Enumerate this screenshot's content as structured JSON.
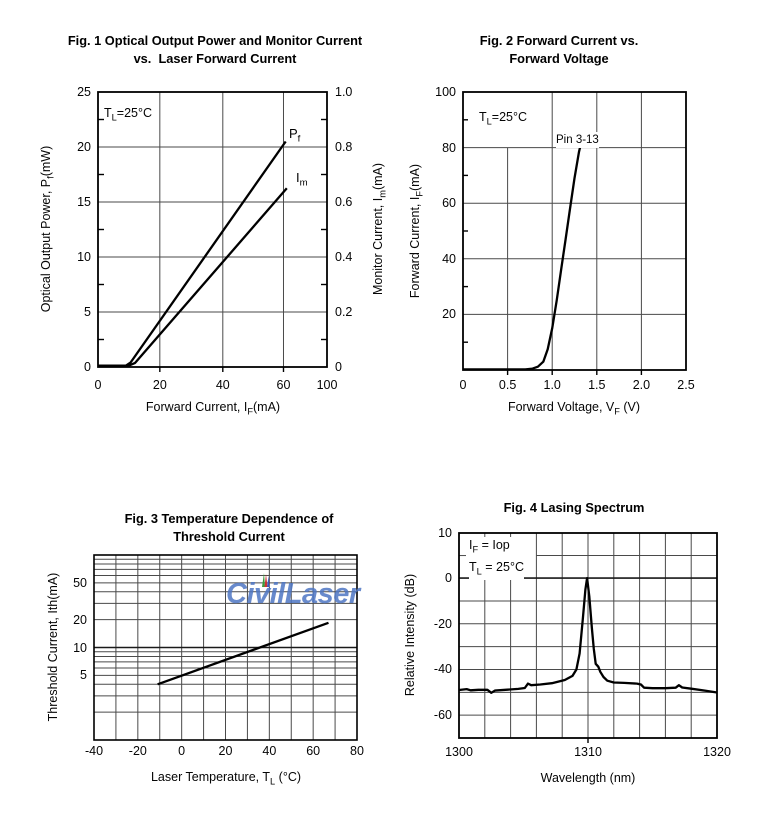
{
  "page": {
    "background": "#ffffff"
  },
  "watermark": {
    "text": "CivilLaser",
    "color": "#4d76c3",
    "spark_colors": [
      "#3a9d3a",
      "#cc3333",
      "#3a57c0"
    ]
  },
  "chart_data": [
    {
      "id": "fig1",
      "type": "line",
      "title_lines": [
        "Fig. 1 Optical Output Power and Monitor Current",
        "vs.  Laser Forward Current"
      ],
      "annotations": [
        {
          "lines": [
            "T_{L}=25°C"
          ]
        }
      ],
      "x_axis": {
        "label": "Forward Current, I_{F}(mA)",
        "lim": [
          0,
          100
        ],
        "ticks": [
          {
            "t": "0",
            "v": 0
          },
          {
            "t": "20",
            "v": 20
          },
          {
            "t": "40",
            "v": 40
          },
          {
            "t": "60",
            "v": 60
          },
          {
            "t": "100",
            "v": 100
          }
        ],
        "gridlines": [
          20,
          40,
          60
        ]
      },
      "y_axis": {
        "label": "Optical Output Power, P_{f}(mW)",
        "lim": [
          0,
          25
        ],
        "ticks": [
          {
            "t": "25",
            "v": 25
          },
          {
            "t": "20",
            "v": 20
          },
          {
            "t": "15",
            "v": 15
          },
          {
            "t": "10",
            "v": 10
          },
          {
            "t": "5",
            "v": 5
          },
          {
            "t": "0",
            "v": 0
          }
        ],
        "gridlines": [
          5,
          10,
          15,
          20
        ]
      },
      "y2_axis": {
        "label": "Monitor Current, I_{m}(mA)",
        "lim": [
          0,
          1.0
        ],
        "ticks": [
          {
            "t": "1.0",
            "v": 1.0
          },
          {
            "t": "0.8",
            "v": 0.8
          },
          {
            "t": "0.6",
            "v": 0.6
          },
          {
            "t": "0.4",
            "v": 0.4
          },
          {
            "t": "0.2",
            "v": 0.2
          },
          {
            "t": "0",
            "v": 0
          }
        ]
      },
      "series": [
        {
          "name": "P_{f}",
          "axis": "y",
          "points": [
            [
              0,
              0.12
            ],
            [
              9,
              0.12
            ],
            [
              10.5,
              0.4
            ],
            [
              62,
              20.5
            ]
          ]
        },
        {
          "name": "I_{m}",
          "axis": "y2",
          "points": [
            [
              0,
              0.005
            ],
            [
              10,
              0.005
            ],
            [
              12,
              0.015
            ],
            [
              63,
              0.65
            ]
          ]
        }
      ]
    },
    {
      "id": "fig2",
      "type": "line",
      "title_lines": [
        "Fig. 2 Forward Current vs.",
        "Forward Voltage"
      ],
      "annotations": [
        {
          "lines": [
            "T_{L}=25°C"
          ]
        },
        {
          "lines": [
            "Pin 3-13"
          ]
        }
      ],
      "x_axis": {
        "label": "Forward Voltage, V_{F} (V)",
        "lim": [
          0,
          2.5
        ],
        "ticks": [
          {
            "t": "0",
            "v": 0
          },
          {
            "t": "0.5",
            "v": 0.5
          },
          {
            "t": "1.0",
            "v": 1.0
          },
          {
            "t": "1.5",
            "v": 1.5
          },
          {
            "t": "2.0",
            "v": 2.0
          },
          {
            "t": "2.5",
            "v": 2.5
          }
        ],
        "gridlines": [
          0.5,
          1.0,
          1.5,
          2.0
        ]
      },
      "y_axis": {
        "label": "Forward Current, I_{F}(mA)",
        "lim": [
          0,
          100
        ],
        "ticks": [
          {
            "t": "100",
            "v": 100
          },
          {
            "t": "80",
            "v": 80
          },
          {
            "t": "60",
            "v": 60
          },
          {
            "t": "40",
            "v": 40
          },
          {
            "t": "20",
            "v": 20
          }
        ],
        "gridlines": [
          20,
          40,
          60,
          80
        ]
      },
      "series": [
        {
          "name": "Pin 3-13",
          "axis": "y",
          "points": [
            [
              0,
              0.2
            ],
            [
              0.7,
              0.2
            ],
            [
              0.78,
              0.5
            ],
            [
              0.84,
              1.2
            ],
            [
              0.9,
              3
            ],
            [
              0.95,
              7.5
            ],
            [
              1.0,
              15
            ],
            [
              1.05,
              25
            ],
            [
              1.1,
              36
            ],
            [
              1.15,
              47
            ],
            [
              1.2,
              58
            ],
            [
              1.25,
              69
            ],
            [
              1.3,
              78.5
            ],
            [
              1.312,
              80
            ]
          ]
        }
      ]
    },
    {
      "id": "fig3",
      "type": "line",
      "title_lines": [
        "Fig. 3 Temperature Dependence of",
        "Threshold Current"
      ],
      "annotations": [],
      "x_axis": {
        "label": "Laser Temperature, T_{L} (°C)",
        "lim": [
          -40,
          80
        ],
        "ticks": [
          {
            "t": "-40",
            "v": -40
          },
          {
            "t": "-20",
            "v": -20
          },
          {
            "t": "0",
            "v": 0
          },
          {
            "t": "20",
            "v": 20
          },
          {
            "t": "40",
            "v": 40
          },
          {
            "t": "60",
            "v": 60
          },
          {
            "t": "80",
            "v": 80
          }
        ],
        "gridlines": [
          -30,
          -20,
          -10,
          0,
          10,
          20,
          30,
          40,
          50,
          60,
          70
        ]
      },
      "y_axis": {
        "label": "Threshold Current, Ith(mA)",
        "scale": "log",
        "lim": [
          1,
          100
        ],
        "ticks": [
          {
            "t": "50",
            "v": 50
          },
          {
            "t": "20",
            "v": 20
          },
          {
            "t": "10",
            "v": 10
          },
          {
            "t": "5",
            "v": 5
          }
        ],
        "gridlines": [
          2,
          3,
          4,
          5,
          6,
          7,
          8,
          9,
          10,
          20,
          30,
          40,
          50,
          60,
          70,
          80,
          90
        ]
      },
      "series": [
        {
          "name": "Ith",
          "axis": "y",
          "points": [
            [
              -11,
              4
            ],
            [
              67,
              18.5
            ]
          ]
        }
      ]
    },
    {
      "id": "fig4",
      "type": "line",
      "title_lines": [
        "Fig. 4 Lasing Spectrum"
      ],
      "annotations": [
        {
          "lines": [
            "I_{F} = Iop",
            "T_{L} = 25°C"
          ]
        }
      ],
      "x_axis": {
        "label": "Wavelength (nm)",
        "lim": [
          1300,
          1320
        ],
        "ticks": [
          {
            "t": "1300",
            "v": 1300
          },
          {
            "t": "1310",
            "v": 1310
          },
          {
            "t": "1320",
            "v": 1320
          }
        ],
        "gridlines": [
          1302,
          1304,
          1306,
          1308,
          1310,
          1312,
          1314,
          1316,
          1318
        ]
      },
      "y_axis": {
        "label": "Relative Intensity (dB)",
        "lim": [
          -70,
          10
        ],
        "ticks": [
          {
            "t": "10",
            "v": 10
          },
          {
            "t": "0",
            "v": 0
          },
          {
            "t": "-20",
            "v": -20
          },
          {
            "t": "-40",
            "v": -40
          },
          {
            "t": "-60",
            "v": -60
          }
        ],
        "gridlines": [
          5,
          0,
          -10,
          -20,
          -30,
          -40,
          -50,
          -60
        ]
      },
      "series": [
        {
          "name": "spectrum",
          "axis": "y",
          "points": [
            [
              1300,
              -49
            ],
            [
              1300.6,
              -48.6
            ],
            [
              1300.9,
              -49.1
            ],
            [
              1301.5,
              -48.9
            ],
            [
              1302.2,
              -48.9
            ],
            [
              1302.5,
              -50.2
            ],
            [
              1302.8,
              -49.2
            ],
            [
              1303.6,
              -48.9
            ],
            [
              1304.6,
              -48.5
            ],
            [
              1305.1,
              -48.1
            ],
            [
              1305.35,
              -46.2
            ],
            [
              1305.6,
              -46.9
            ],
            [
              1306.3,
              -46.6
            ],
            [
              1307.2,
              -46.0
            ],
            [
              1308.2,
              -44.6
            ],
            [
              1308.8,
              -42.8
            ],
            [
              1309.1,
              -40
            ],
            [
              1309.35,
              -33
            ],
            [
              1309.6,
              -18
            ],
            [
              1309.8,
              -5
            ],
            [
              1309.93,
              0
            ],
            [
              1310.1,
              -8
            ],
            [
              1310.3,
              -22
            ],
            [
              1310.45,
              -31
            ],
            [
              1310.6,
              -37.5
            ],
            [
              1310.8,
              -38.8
            ],
            [
              1310.95,
              -41
            ],
            [
              1311.2,
              -43.3
            ],
            [
              1311.5,
              -44.9
            ],
            [
              1312,
              -45.7
            ],
            [
              1312.8,
              -45.9
            ],
            [
              1313.8,
              -46.2
            ],
            [
              1314.1,
              -46.6
            ],
            [
              1314.35,
              -48
            ],
            [
              1315,
              -48.2
            ],
            [
              1316,
              -48.2
            ],
            [
              1316.8,
              -48.0
            ],
            [
              1317.05,
              -46.9
            ],
            [
              1317.3,
              -47.9
            ],
            [
              1318,
              -48.4
            ],
            [
              1319,
              -49.2
            ],
            [
              1320,
              -50.1
            ]
          ]
        }
      ]
    }
  ]
}
